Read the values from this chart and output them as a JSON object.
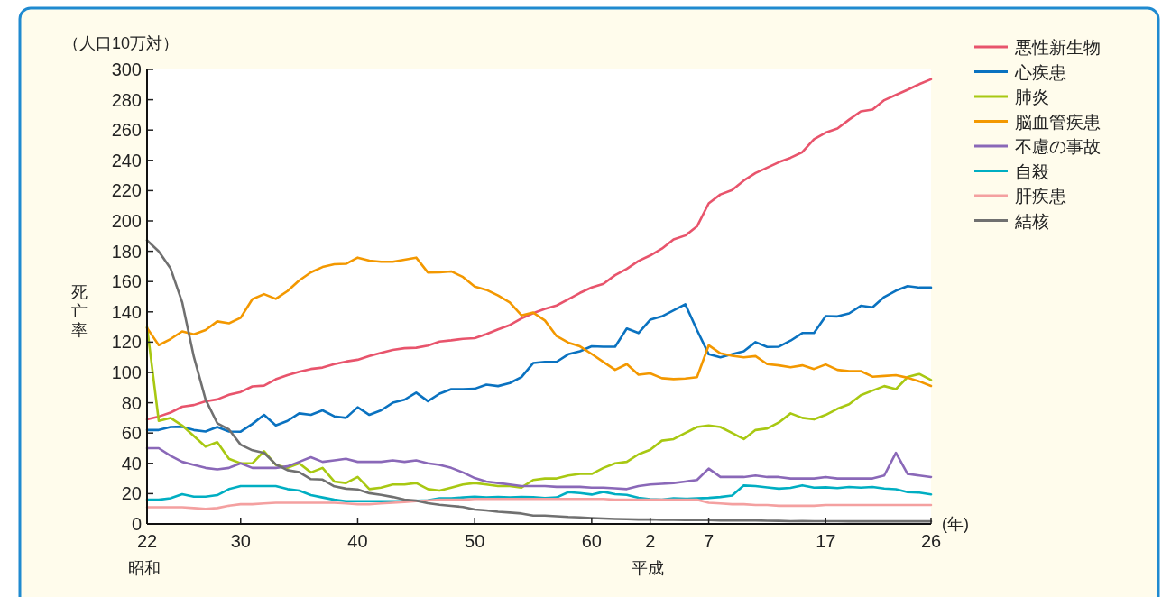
{
  "chart_data": {
    "type": "line",
    "ylabel": "死亡率",
    "xlabel": "(年)",
    "annotations": [
      "（人口10万対）",
      "昭和",
      "平成"
    ],
    "categories": [
      "22",
      null,
      null,
      null,
      null,
      null,
      null,
      null,
      "30",
      null,
      null,
      null,
      null,
      null,
      null,
      null,
      null,
      null,
      "40",
      null,
      null,
      null,
      null,
      null,
      null,
      null,
      null,
      null,
      "50",
      null,
      null,
      null,
      null,
      null,
      null,
      null,
      null,
      null,
      "60",
      null,
      null,
      null,
      null,
      "2",
      null,
      null,
      null,
      null,
      "7",
      null,
      null,
      null,
      null,
      null,
      null,
      null,
      null,
      null,
      "17",
      null,
      null,
      null,
      null,
      null,
      null,
      null,
      null,
      "26"
    ],
    "ylim": [
      0,
      300
    ],
    "yticks": [
      0,
      20,
      40,
      60,
      80,
      100,
      120,
      140,
      160,
      180,
      200,
      220,
      240,
      260,
      280,
      300
    ],
    "legend": "top right",
    "series": [
      {
        "name": "悪性新生物",
        "color": "#e8546c",
        "values": [
          69,
          70.9,
          73.5,
          77.4,
          78.5,
          80.9,
          82.2,
          85.3,
          87.1,
          90.8,
          91.3,
          95.5,
          98.2,
          100.4,
          102.3,
          103.2,
          105.5,
          107.2,
          108.4,
          110.8,
          113,
          114.9,
          116,
          116.3,
          117.7,
          120.4,
          121.2,
          122.2,
          122.6,
          125.3,
          128.4,
          131.3,
          135.7,
          139.1,
          142,
          144.2,
          148.3,
          152.5,
          156.1,
          158.5,
          164.2,
          168.4,
          173.6,
          177.2,
          181.7,
          187.8,
          190.4,
          196.4,
          211.6,
          217.5,
          220.4,
          226.7,
          231.6,
          235.2,
          238.8,
          241.7,
          245.4,
          253.9,
          258.3,
          261,
          266.9,
          272.3,
          273.5,
          279.7,
          283.2,
          286.6,
          290.3,
          293.5
        ]
      },
      {
        "name": "心疾患",
        "color": "#0a72c0",
        "values": [
          62,
          62,
          64,
          64.2,
          62,
          61,
          64,
          61,
          60.9,
          66,
          72,
          65,
          68,
          73,
          72,
          75,
          71,
          70,
          77,
          72,
          75,
          80,
          82,
          86.7,
          81,
          86,
          89,
          89,
          89.2,
          92,
          91,
          93,
          97,
          106.2,
          107,
          107,
          112,
          114,
          117.3,
          117,
          117,
          129,
          126,
          134.8,
          137,
          141,
          145,
          128,
          112,
          110,
          112,
          114,
          120,
          116.8,
          117,
          121,
          126,
          126,
          137.2,
          137,
          139,
          144,
          143,
          149.8,
          154,
          157,
          156,
          156
        ]
      },
      {
        "name": "肺炎",
        "color": "#a8c812",
        "values": [
          130,
          68,
          70,
          65,
          58,
          51,
          54,
          43,
          40,
          40,
          48,
          39,
          37,
          40,
          34,
          37,
          28,
          27,
          31,
          23,
          24,
          26,
          26,
          27,
          23,
          22,
          24,
          26,
          27,
          26,
          25,
          25,
          24,
          29,
          30,
          30,
          32,
          33,
          33,
          37,
          40,
          41,
          46,
          49,
          55,
          56,
          60,
          64,
          65,
          64,
          60,
          56,
          62,
          63,
          67,
          73,
          70,
          69,
          72,
          76,
          79,
          85,
          88,
          91,
          89,
          97,
          99,
          95
        ]
      },
      {
        "name": "脳血管疾患",
        "color": "#f39800",
        "values": [
          129.4,
          118,
          122,
          127.1,
          125.2,
          128,
          133.7,
          132.4,
          136.1,
          148.4,
          151.7,
          148.6,
          153.7,
          160.7,
          166.1,
          169.6,
          171.4,
          171.7,
          175.8,
          173.8,
          173.1,
          173.1,
          174.4,
          175.8,
          166,
          166.1,
          166.7,
          163,
          156.7,
          154.5,
          150.8,
          146.2,
          137.7,
          139.5,
          134.3,
          124,
          119.7,
          117.2,
          112.2,
          106.9,
          101.7,
          105.5,
          98.5,
          99.4,
          96.2,
          95.6,
          96,
          96.9,
          117.9,
          112.6,
          111,
          110,
          110.8,
          105.5,
          104.7,
          103.4,
          104.7,
          102.3,
          105.3,
          101.7,
          100.8,
          100.9,
          97.2,
          97.7,
          98.2,
          96.5,
          94.1,
          91.1
        ]
      },
      {
        "name": "不慮の事故",
        "color": "#8a68b8",
        "values": [
          50,
          50,
          45,
          41,
          39,
          37,
          36,
          37,
          40,
          37,
          37,
          37,
          38,
          41,
          44,
          41,
          42,
          43,
          41,
          41,
          41,
          42,
          41,
          42,
          40,
          39,
          37,
          34,
          30.3,
          28,
          27,
          26,
          25,
          25,
          25,
          24.5,
          24.5,
          24.5,
          24,
          24,
          23.5,
          23,
          25,
          26,
          26.5,
          27,
          28,
          29,
          36.5,
          31,
          31,
          31,
          32,
          31,
          31,
          30,
          30,
          30,
          31,
          30,
          30,
          30,
          30,
          32,
          47,
          33,
          32,
          31
        ]
      },
      {
        "name": "自殺",
        "color": "#00aec2",
        "values": [
          16,
          16,
          17,
          19.6,
          18,
          18,
          19,
          23,
          25,
          25,
          25,
          25,
          23,
          22,
          19,
          17.5,
          16,
          15,
          15,
          15,
          15,
          15,
          15,
          15.3,
          15.6,
          17,
          17,
          17.5,
          18,
          17.6,
          17.9,
          17.6,
          17.8,
          17.7,
          17.1,
          17.5,
          21,
          20.4,
          19.4,
          21.2,
          19.6,
          19.2,
          17.3,
          16.4,
          16,
          16.9,
          16.6,
          16.9,
          17.2,
          17.8,
          18.8,
          25.4,
          25,
          24.1,
          23.3,
          23.8,
          25.5,
          24,
          24.2,
          23.7,
          24.4,
          24,
          24.4,
          23.4,
          22.9,
          21,
          20.7,
          19.5
        ]
      },
      {
        "name": "肝疾患",
        "color": "#f4a0a0",
        "values": [
          11,
          11,
          11,
          11,
          10.5,
          10,
          10.5,
          12,
          13,
          13,
          13.5,
          14,
          14,
          14,
          14,
          14,
          14,
          13.5,
          13,
          13,
          13.5,
          14,
          14.5,
          15,
          15.5,
          16,
          16,
          16,
          16.5,
          16.5,
          16.5,
          16.5,
          16.5,
          16.5,
          16.5,
          16.5,
          16.5,
          16.5,
          16.5,
          16.5,
          16,
          16,
          16,
          16,
          16,
          16,
          16,
          16,
          14,
          13.5,
          13,
          13,
          12.5,
          12.5,
          12,
          12,
          12,
          12,
          12.5,
          12.5,
          12.5,
          12.5,
          12.5,
          12.5,
          12.5,
          12.5,
          12.5,
          12.5
        ]
      },
      {
        "name": "結核",
        "color": "#707070",
        "values": [
          187.2,
          179.9,
          168.8,
          146.4,
          110.3,
          82.2,
          66.5,
          62.4,
          52.3,
          48.6,
          46.9,
          39.4,
          35.5,
          34.2,
          29.6,
          29.3,
          24.8,
          23.3,
          22.8,
          20.3,
          19.2,
          17.8,
          16.1,
          15.4,
          13.7,
          12.6,
          11.9,
          11.2,
          9.5,
          8.9,
          8,
          7.5,
          6.9,
          5.5,
          5.5,
          5.1,
          4.6,
          4.3,
          3.9,
          3.6,
          3.3,
          3.1,
          2.9,
          3,
          2.7,
          2.7,
          2.6,
          2.6,
          2.6,
          2.3,
          2.2,
          2.2,
          2.3,
          2.1,
          2,
          1.8,
          1.9,
          1.8,
          1.8,
          1.8,
          1.7,
          1.8,
          1.7,
          1.7,
          1.7,
          1.7,
          1.7,
          1.7
        ]
      }
    ]
  }
}
